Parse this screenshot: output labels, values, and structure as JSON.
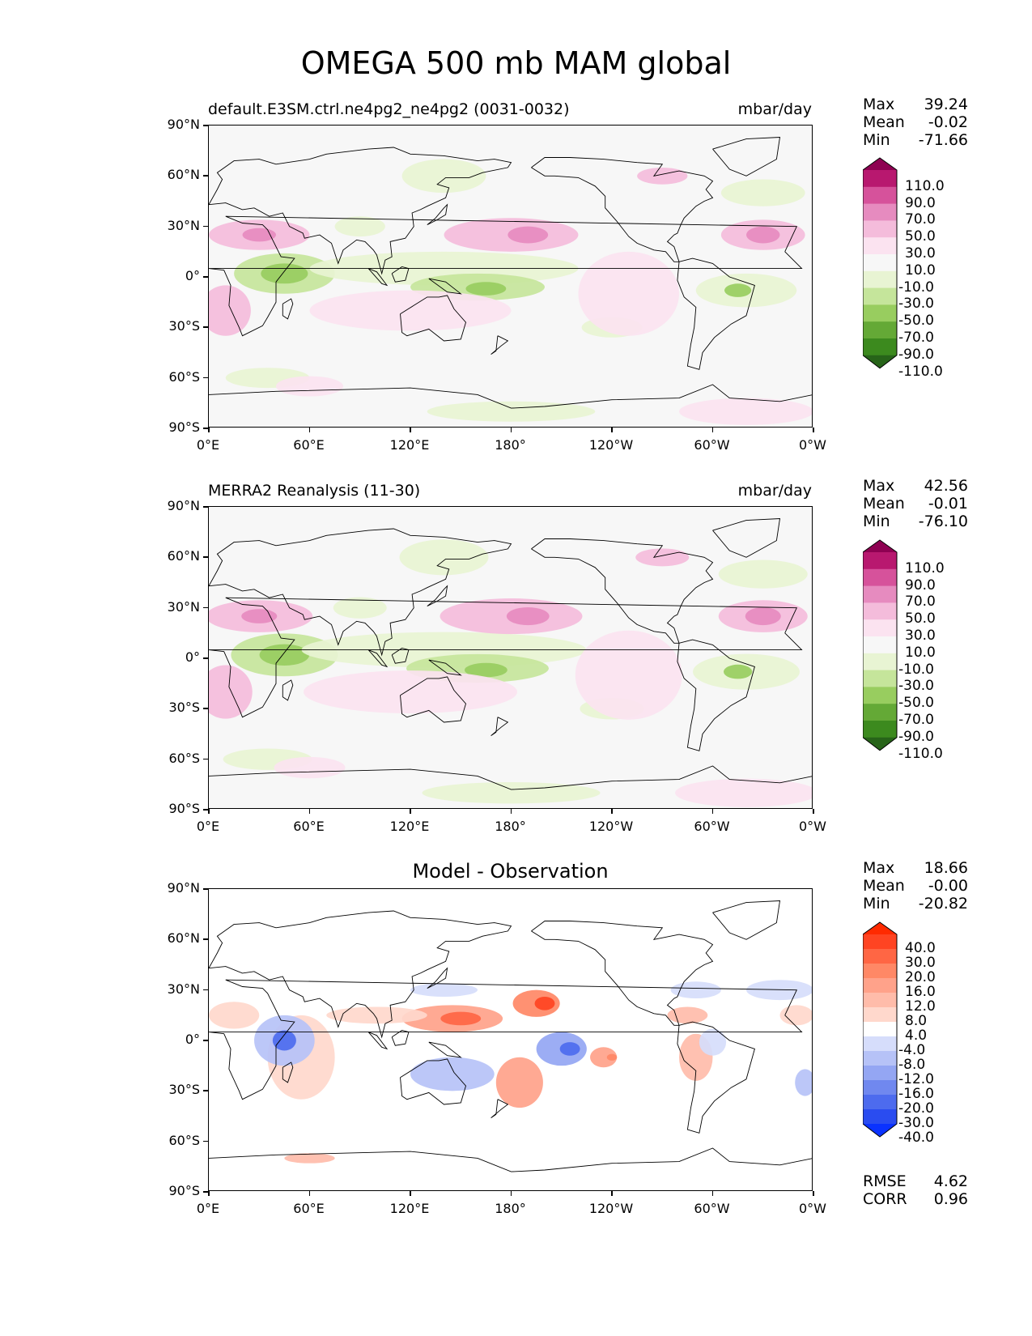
{
  "figure_title": "OMEGA 500 mb MAM global",
  "x_ticks": [
    "0°E",
    "60°E",
    "120°E",
    "180°",
    "120°W",
    "60°W",
    "0°W"
  ],
  "y_ticks": [
    "90°N",
    "60°N",
    "30°N",
    "0°",
    "30°S",
    "60°S",
    "90°S"
  ],
  "chart_data": [
    {
      "type": "heatmap",
      "title_left": "default.E3SM.ctrl.ne4pg2_ne4pg2 (0031-0032)",
      "title_right": "mbar/day",
      "stats": {
        "max_label": "Max",
        "max": "39.24",
        "mean_label": "Mean",
        "mean": "-0.02",
        "min_label": "Min",
        "min": "-71.66"
      },
      "colorbar_levels": [
        "110.0",
        "90.0",
        "70.0",
        "50.0",
        "30.0",
        "10.0",
        "-10.0",
        "-30.0",
        "-50.0",
        "-70.0",
        "-90.0",
        "-110.0"
      ],
      "colorbar_colors": [
        "#8e0152",
        "#b8186f",
        "#d6529b",
        "#e68bbf",
        "#f4bcdb",
        "#fbe3f0",
        "#f7f7f7",
        "#e8f4d3",
        "#c5e59b",
        "#98cd5f",
        "#64a936",
        "#3c8a1e",
        "#276419"
      ],
      "xlim": [
        0,
        360
      ],
      "ylim": [
        -90,
        90
      ]
    },
    {
      "type": "heatmap",
      "title_left": "MERRA2 Reanalysis (11-30)",
      "title_right": "mbar/day",
      "stats": {
        "max_label": "Max",
        "max": "42.56",
        "mean_label": "Mean",
        "mean": "-0.01",
        "min_label": "Min",
        "min": "-76.10"
      },
      "colorbar_levels": [
        "110.0",
        "90.0",
        "70.0",
        "50.0",
        "30.0",
        "10.0",
        "-10.0",
        "-30.0",
        "-50.0",
        "-70.0",
        "-90.0",
        "-110.0"
      ],
      "colorbar_colors": [
        "#8e0152",
        "#b8186f",
        "#d6529b",
        "#e68bbf",
        "#f4bcdb",
        "#fbe3f0",
        "#f7f7f7",
        "#e8f4d3",
        "#c5e59b",
        "#98cd5f",
        "#64a936",
        "#3c8a1e",
        "#276419"
      ],
      "xlim": [
        0,
        360
      ],
      "ylim": [
        -90,
        90
      ]
    },
    {
      "type": "heatmap",
      "title_center": "Model - Observation",
      "stats": {
        "max_label": "Max",
        "max": "18.66",
        "mean_label": "Mean",
        "mean": "-0.00",
        "min_label": "Min",
        "min": "-20.82"
      },
      "colorbar_levels": [
        "40.0",
        "30.0",
        "20.0",
        "16.0",
        "12.0",
        "8.0",
        "4.0",
        "-4.0",
        "-8.0",
        "-12.0",
        "-16.0",
        "-20.0",
        "-30.0",
        "-40.0"
      ],
      "colorbar_colors": [
        "#ff2a00",
        "#ff4422",
        "#ff6644",
        "#ff8866",
        "#ffa28a",
        "#ffbcaa",
        "#ffd8cc",
        "#ffffff",
        "#d6ddfb",
        "#b6c2f7",
        "#94a6f3",
        "#7088ef",
        "#4d6bee",
        "#2a4cf0",
        "#0a32ff"
      ],
      "metrics": {
        "rmse_label": "RMSE",
        "rmse": "4.62",
        "corr_label": "CORR",
        "corr": "0.96"
      },
      "xlim": [
        0,
        360
      ],
      "ylim": [
        -90,
        90
      ]
    }
  ]
}
